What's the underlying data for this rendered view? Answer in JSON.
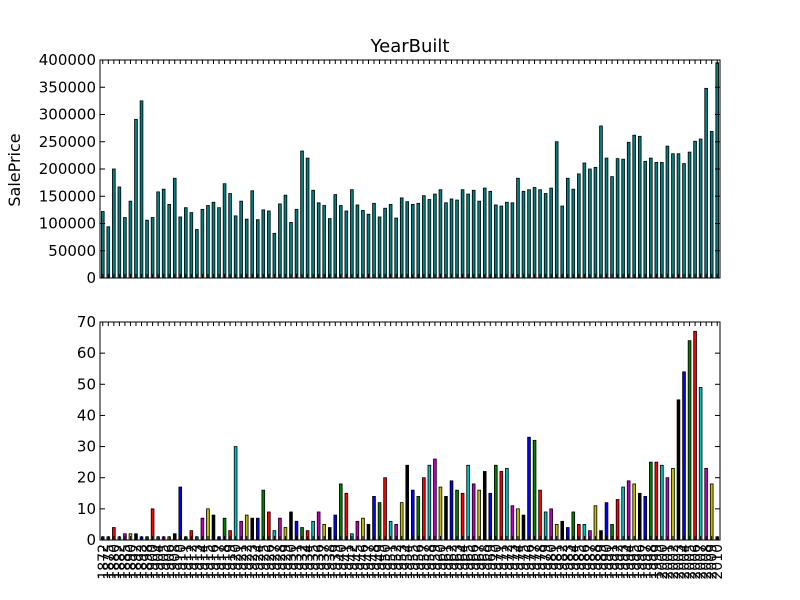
{
  "chart_data": [
    {
      "type": "bar",
      "title": "YearBuilt",
      "xlabel": "",
      "ylabel": "SalePrice",
      "ylim": [
        0,
        400000
      ],
      "yticks": [
        0,
        50000,
        100000,
        150000,
        200000,
        250000,
        300000,
        350000,
        400000
      ],
      "ytick_labels": [
        "0",
        "50000",
        "100000",
        "150000",
        "200000",
        "250000",
        "300000",
        "350000",
        "400000"
      ],
      "bar_color": "#008080",
      "categories": [
        1872,
        1875,
        1880,
        1882,
        1885,
        1890,
        1892,
        1893,
        1898,
        1900,
        1904,
        1905,
        1906,
        1908,
        1910,
        1911,
        1912,
        1913,
        1914,
        1915,
        1916,
        1917,
        1918,
        1919,
        1920,
        1921,
        1922,
        1923,
        1924,
        1925,
        1926,
        1927,
        1928,
        1929,
        1930,
        1931,
        1932,
        1934,
        1935,
        1936,
        1937,
        1938,
        1939,
        1940,
        1941,
        1942,
        1945,
        1946,
        1947,
        1948,
        1949,
        1950,
        1951,
        1952,
        1953,
        1954,
        1955,
        1956,
        1957,
        1958,
        1959,
        1960,
        1961,
        1962,
        1963,
        1964,
        1965,
        1966,
        1967,
        1968,
        1969,
        1970,
        1971,
        1972,
        1973,
        1974,
        1975,
        1976,
        1977,
        1978,
        1979,
        1980,
        1981,
        1982,
        1983,
        1984,
        1985,
        1986,
        1987,
        1988,
        1989,
        1990,
        1991,
        1992,
        1993,
        1994,
        1995,
        1996,
        1997,
        1998,
        1999,
        2000,
        2001,
        2002,
        2003,
        2004,
        2005,
        2006,
        2007,
        2008,
        2009,
        2010
      ],
      "values": [
        122000,
        94000,
        200000,
        167000,
        111000,
        141000,
        291000,
        325000,
        106000,
        111000,
        158000,
        163000,
        135000,
        183000,
        112000,
        129000,
        120000,
        89000,
        126000,
        133000,
        139000,
        129000,
        173000,
        155000,
        114000,
        141000,
        108000,
        160000,
        107000,
        125000,
        123000,
        82000,
        136000,
        152000,
        102000,
        126000,
        233000,
        220000,
        161000,
        138000,
        133000,
        109000,
        153000,
        133000,
        123000,
        162000,
        134000,
        124000,
        117000,
        137000,
        112000,
        128000,
        135000,
        110000,
        147000,
        140000,
        135000,
        137000,
        151000,
        144000,
        154000,
        162000,
        138000,
        145000,
        143000,
        162000,
        154000,
        161000,
        141000,
        165000,
        159000,
        134000,
        132000,
        139000,
        138000,
        183000,
        159000,
        162000,
        166000,
        162000,
        155000,
        165000,
        250000,
        132000,
        183000,
        163000,
        191000,
        211000,
        200000,
        203000,
        279000,
        220000,
        186000,
        219000,
        218000,
        249000,
        262000,
        260000,
        214000,
        220000,
        212000,
        212000,
        242000,
        228000,
        228000,
        210000,
        231000,
        251000,
        255000,
        348000,
        269000,
        395000
      ]
    },
    {
      "type": "bar",
      "title": "",
      "xlabel": "",
      "ylabel": "",
      "ylim": [
        0,
        70
      ],
      "yticks": [
        0,
        10,
        20,
        30,
        40,
        50,
        60,
        70
      ],
      "ytick_labels": [
        "0",
        "10",
        "20",
        "30",
        "40",
        "50",
        "60",
        "70"
      ],
      "color_cycle": [
        "#0000ff",
        "#008000",
        "#ff0000",
        "#00bfbf",
        "#bf00bf",
        "#bfbf00",
        "#000000"
      ],
      "categories": [
        1872,
        1875,
        1880,
        1882,
        1885,
        1890,
        1892,
        1893,
        1898,
        1900,
        1904,
        1905,
        1906,
        1908,
        1910,
        1911,
        1912,
        1913,
        1914,
        1915,
        1916,
        1917,
        1918,
        1919,
        1920,
        1921,
        1922,
        1923,
        1924,
        1925,
        1926,
        1927,
        1928,
        1929,
        1930,
        1931,
        1932,
        1934,
        1935,
        1936,
        1937,
        1938,
        1939,
        1940,
        1941,
        1942,
        1945,
        1946,
        1947,
        1948,
        1949,
        1950,
        1951,
        1952,
        1953,
        1954,
        1955,
        1956,
        1957,
        1958,
        1959,
        1960,
        1961,
        1962,
        1963,
        1964,
        1965,
        1966,
        1967,
        1968,
        1969,
        1970,
        1971,
        1972,
        1973,
        1974,
        1975,
        1976,
        1977,
        1978,
        1979,
        1980,
        1981,
        1982,
        1983,
        1984,
        1985,
        1986,
        1987,
        1988,
        1989,
        1990,
        1991,
        1992,
        1993,
        1994,
        1995,
        1996,
        1997,
        1998,
        1999,
        2000,
        2001,
        2002,
        2003,
        2004,
        2005,
        2006,
        2007,
        2008,
        2009,
        2010
      ],
      "values": [
        1,
        1,
        4,
        1,
        2,
        2,
        2,
        1,
        1,
        10,
        1,
        1,
        1,
        2,
        17,
        1,
        3,
        1,
        7,
        10,
        8,
        1,
        7,
        3,
        30,
        6,
        8,
        7,
        7,
        16,
        9,
        3,
        7,
        4,
        9,
        6,
        4,
        3,
        6,
        9,
        5,
        4,
        8,
        18,
        15,
        2,
        6,
        7,
        5,
        14,
        12,
        20,
        6,
        5,
        12,
        24,
        16,
        14,
        20,
        24,
        26,
        17,
        14,
        19,
        16,
        15,
        24,
        18,
        16,
        22,
        15,
        24,
        22,
        23,
        11,
        10,
        8,
        33,
        32,
        16,
        9,
        10,
        5,
        6,
        4,
        9,
        5,
        5,
        3,
        11,
        3,
        12,
        5,
        13,
        17,
        19,
        18,
        15,
        14,
        25,
        25,
        24,
        20,
        23,
        45,
        54,
        64,
        67,
        49,
        23,
        18,
        1
      ]
    }
  ]
}
